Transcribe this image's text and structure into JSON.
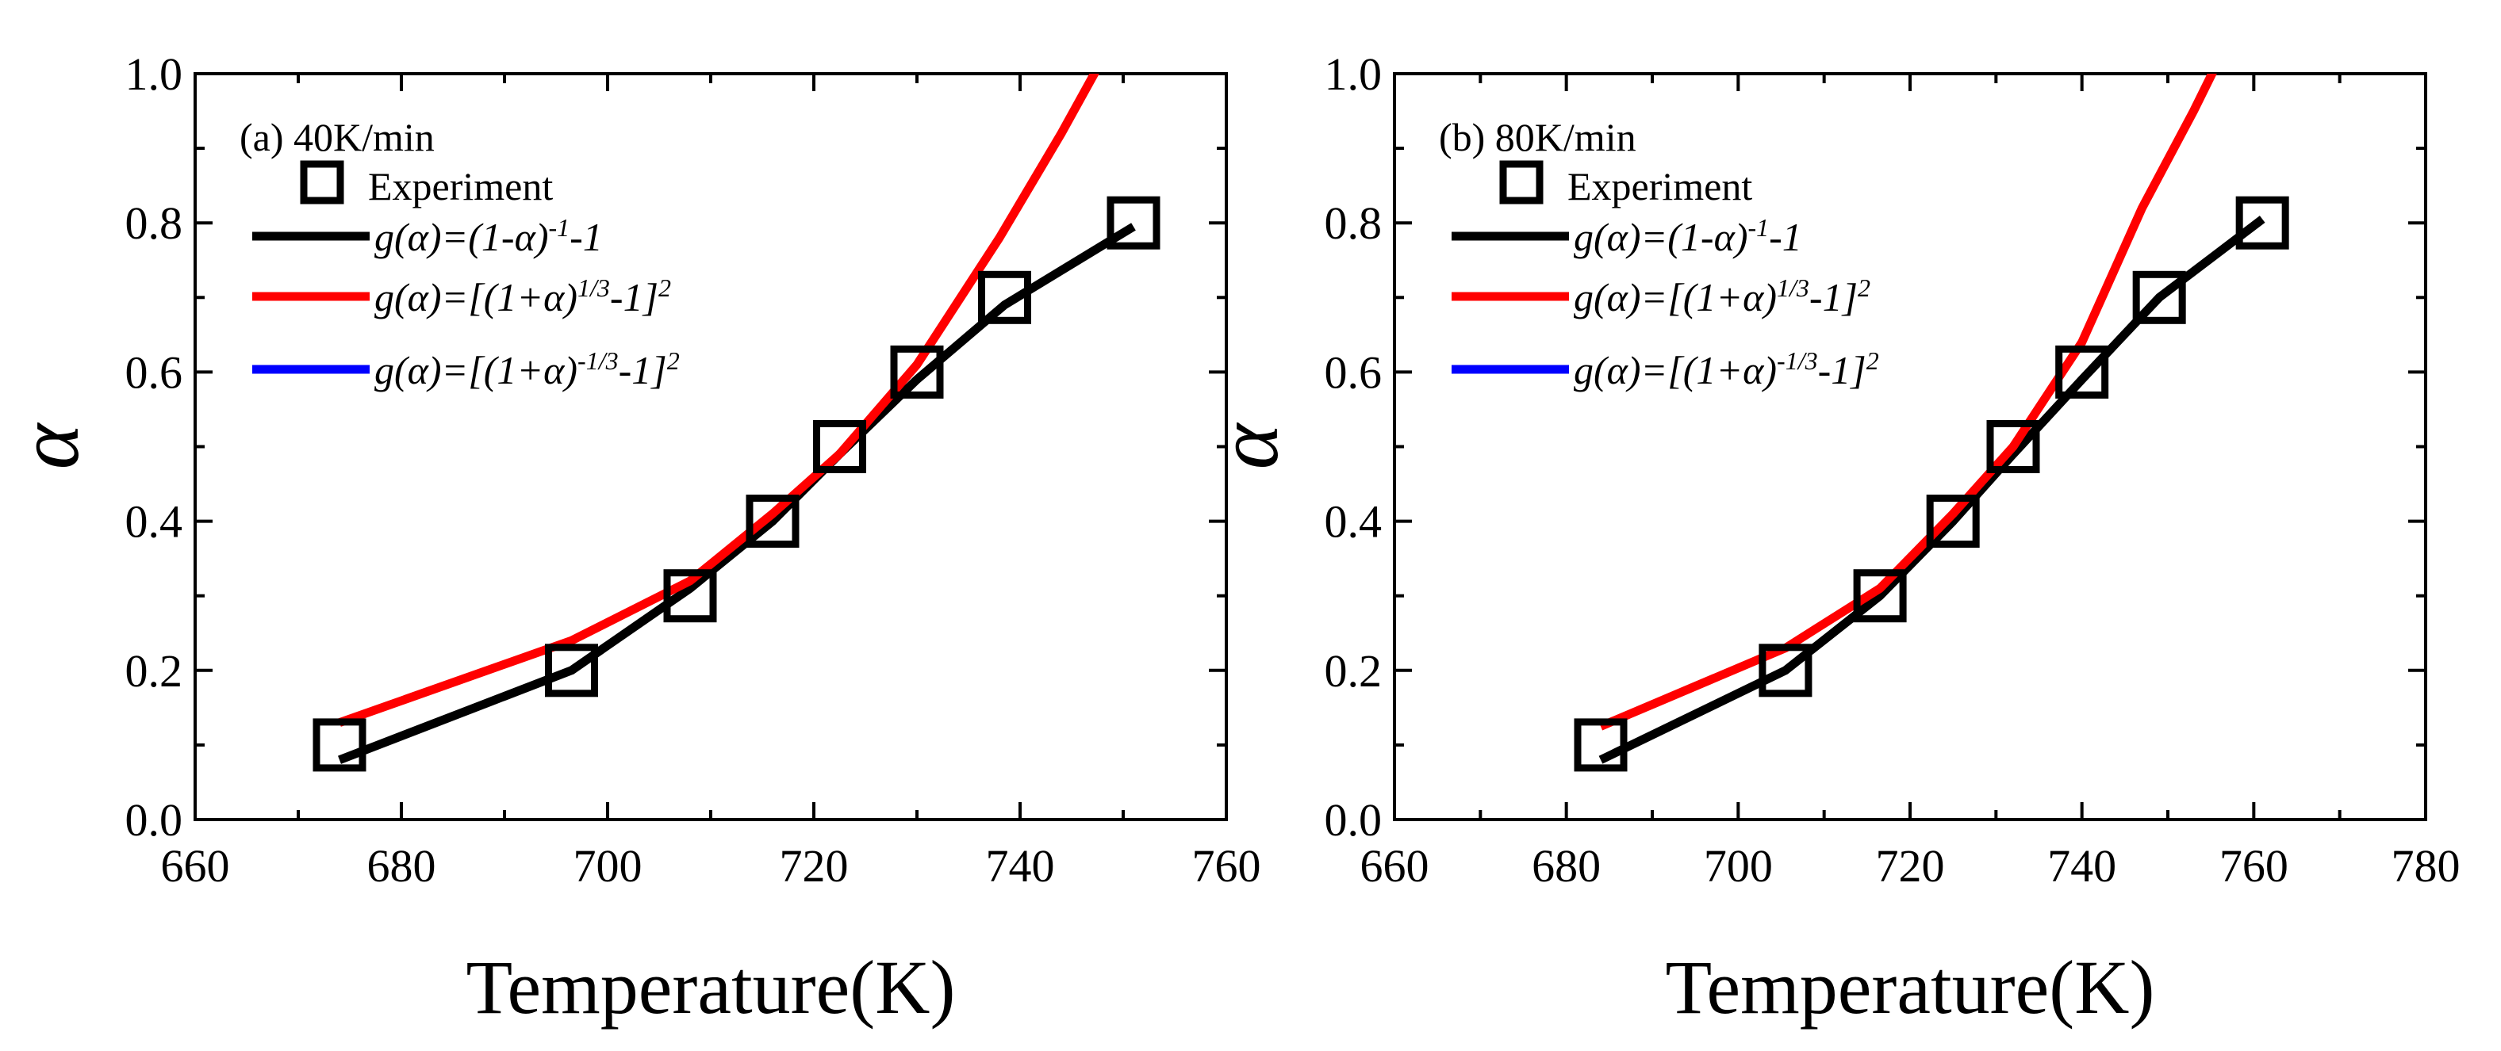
{
  "chart_data": [
    {
      "type": "line",
      "panel_label": "(a) 40K/min",
      "xlabel": "Temperature(K)",
      "ylabel": "α",
      "xlim": [
        660,
        760
      ],
      "ylim": [
        0.0,
        1.0
      ],
      "xticks": [
        "660",
        "680",
        "700",
        "720",
        "740",
        "760"
      ],
      "yticks": [
        "0.0",
        "0.2",
        "0.4",
        "0.6",
        "0.8",
        "1.0"
      ],
      "legend_position": "top-left",
      "series": [
        {
          "name": "Experiment",
          "kind": "scatter",
          "marker": "open-square",
          "color": "#000000",
          "x": [
            674,
            696.5,
            708,
            716,
            722.5,
            730,
            738.5,
            751
          ],
          "y": [
            0.1,
            0.2,
            0.3,
            0.4,
            0.5,
            0.6,
            0.7,
            0.8
          ]
        },
        {
          "name": "g(α)=(1-α)^-1-1",
          "kind": "line",
          "color": "#000000",
          "x": [
            674,
            696.5,
            708,
            716,
            722.5,
            730,
            738.5,
            751
          ],
          "y": [
            0.08,
            0.2,
            0.31,
            0.4,
            0.49,
            0.59,
            0.69,
            0.795
          ]
        },
        {
          "name": "g(α)=[(1+α)^1/3-1]^2",
          "kind": "line",
          "color": "#ff0000",
          "x": [
            674,
            696.5,
            708,
            716,
            722.5,
            730,
            738,
            744,
            748
          ],
          "y": [
            0.13,
            0.24,
            0.32,
            0.41,
            0.49,
            0.61,
            0.78,
            0.92,
            1.02
          ]
        },
        {
          "name": "g(α)=[(1+α)^-1/3-1]^2",
          "kind": "line",
          "color": "#0000ff",
          "x": [],
          "y": []
        }
      ],
      "legend_formulas": [
        {
          "base": "g(α)=(1-α)",
          "sup": "-1",
          "tail": "-1",
          "sup2": ""
        },
        {
          "base": "g(α)=[(1+α)",
          "sup": "1/3",
          "tail": "-1]",
          "sup2": "2"
        },
        {
          "base": "g(α)=[(1+α)",
          "sup": "-1/3",
          "tail": "-1]",
          "sup2": "2"
        }
      ]
    },
    {
      "type": "line",
      "panel_label": "(b) 80K/min",
      "xlabel": "Temperature(K)",
      "ylabel": "α",
      "xlim": [
        660,
        780
      ],
      "ylim": [
        0.0,
        1.0
      ],
      "xticks": [
        "660",
        "680",
        "700",
        "720",
        "740",
        "760",
        "780"
      ],
      "yticks": [
        "0.0",
        "0.2",
        "0.4",
        "0.6",
        "0.8",
        "1.0"
      ],
      "legend_position": "top-left",
      "series": [
        {
          "name": "Experiment",
          "kind": "scatter",
          "marker": "open-square",
          "color": "#000000",
          "x": [
            684,
            705.5,
            716.5,
            725,
            732,
            740,
            749,
            761
          ],
          "y": [
            0.1,
            0.2,
            0.3,
            0.4,
            0.5,
            0.6,
            0.7,
            0.8
          ]
        },
        {
          "name": "g(α)=(1-α)^-1-1",
          "kind": "line",
          "color": "#000000",
          "x": [
            684,
            705.5,
            716.5,
            725,
            732,
            740,
            749,
            761
          ],
          "y": [
            0.08,
            0.2,
            0.3,
            0.4,
            0.49,
            0.59,
            0.7,
            0.805
          ]
        },
        {
          "name": "g(α)=[(1+α)^1/3-1]^2",
          "kind": "line",
          "color": "#ff0000",
          "x": [
            684,
            705.5,
            716.5,
            725,
            732,
            740,
            747,
            753,
            756
          ],
          "y": [
            0.125,
            0.23,
            0.31,
            0.41,
            0.5,
            0.64,
            0.82,
            0.95,
            1.02
          ]
        },
        {
          "name": "g(α)=[(1+α)^-1/3-1]^2",
          "kind": "line",
          "color": "#0000ff",
          "x": [],
          "y": []
        }
      ],
      "legend_formulas": [
        {
          "base": "g(α)=(1-α)",
          "sup": "-1",
          "tail": "-1",
          "sup2": ""
        },
        {
          "base": "g(α)=[(1+α)",
          "sup": "1/3",
          "tail": "-1]",
          "sup2": "2"
        },
        {
          "base": "g(α)=[(1+α)",
          "sup": "-1/3",
          "tail": "-1]",
          "sup2": "2"
        }
      ]
    }
  ]
}
